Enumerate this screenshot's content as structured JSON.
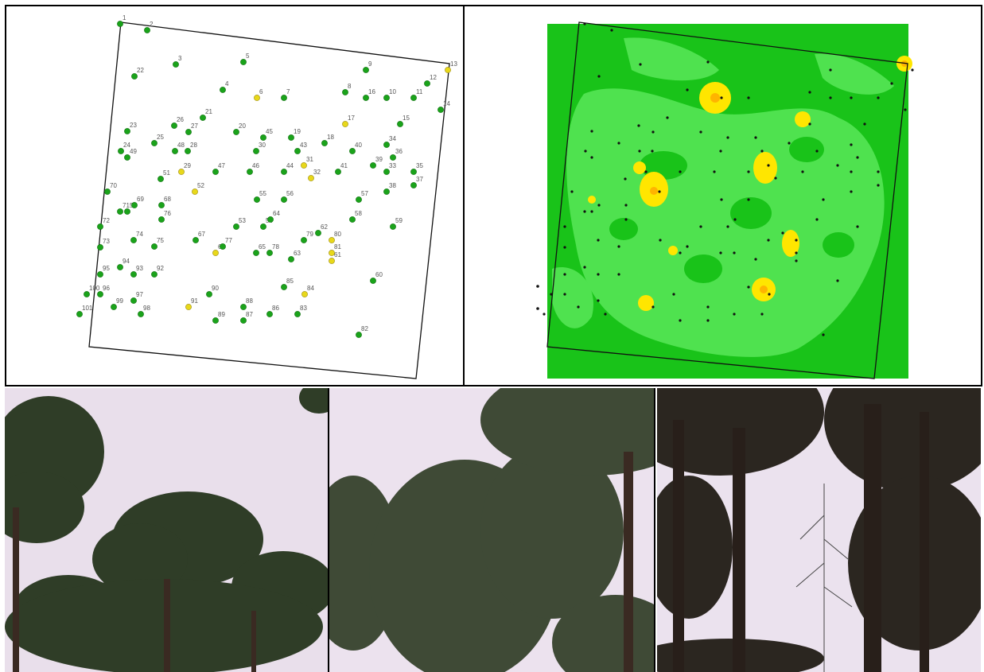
{
  "colors": {
    "point_green": "#1aa31a",
    "point_yellow": "#e8d81a",
    "map_dark_green": "#19c319",
    "map_light_green": "#4fe24f",
    "map_yellow": "#ffe600",
    "map_orange": "#ffb400",
    "sky": "#e8dfea",
    "foliage_dark": "#2d3a22",
    "trunk": "#3a2a22"
  },
  "point_map": {
    "points": [
      {
        "n": "1",
        "c": "g"
      },
      {
        "n": "2",
        "c": "g"
      },
      {
        "n": "3",
        "c": "g"
      },
      {
        "n": "4",
        "c": "g"
      },
      {
        "n": "5",
        "c": "g"
      },
      {
        "n": "6",
        "c": "y"
      },
      {
        "n": "7",
        "c": "g"
      },
      {
        "n": "8",
        "c": "g"
      },
      {
        "n": "9",
        "c": "g"
      },
      {
        "n": "10",
        "c": "g"
      },
      {
        "n": "11",
        "c": "g"
      },
      {
        "n": "12",
        "c": "g"
      },
      {
        "n": "13",
        "c": "y"
      },
      {
        "n": "14",
        "c": "g"
      },
      {
        "n": "15",
        "c": "g"
      },
      {
        "n": "16",
        "c": "g"
      },
      {
        "n": "17",
        "c": "y"
      },
      {
        "n": "18",
        "c": "g"
      },
      {
        "n": "19",
        "c": "g"
      },
      {
        "n": "20",
        "c": "g"
      },
      {
        "n": "21",
        "c": "g"
      },
      {
        "n": "22",
        "c": "g"
      },
      {
        "n": "23",
        "c": "g"
      },
      {
        "n": "24",
        "c": "g"
      },
      {
        "n": "25",
        "c": "g"
      },
      {
        "n": "26",
        "c": "g"
      },
      {
        "n": "27",
        "c": "g"
      },
      {
        "n": "28",
        "c": "g"
      },
      {
        "n": "29",
        "c": "y"
      },
      {
        "n": "30",
        "c": "g"
      },
      {
        "n": "31",
        "c": "y"
      },
      {
        "n": "32",
        "c": "y"
      },
      {
        "n": "33",
        "c": "g"
      },
      {
        "n": "34",
        "c": "g"
      },
      {
        "n": "35",
        "c": "g"
      },
      {
        "n": "36",
        "c": "g"
      },
      {
        "n": "37",
        "c": "g"
      },
      {
        "n": "38",
        "c": "g"
      },
      {
        "n": "39",
        "c": "g"
      },
      {
        "n": "40",
        "c": "g"
      },
      {
        "n": "41",
        "c": "g"
      },
      {
        "n": "43",
        "c": "g"
      },
      {
        "n": "44",
        "c": "g"
      },
      {
        "n": "45",
        "c": "g"
      },
      {
        "n": "46",
        "c": "g"
      },
      {
        "n": "47",
        "c": "g"
      },
      {
        "n": "48",
        "c": "g"
      },
      {
        "n": "49",
        "c": "g"
      },
      {
        "n": "50",
        "c": "g"
      },
      {
        "n": "51",
        "c": "g"
      },
      {
        "n": "52",
        "c": "y"
      },
      {
        "n": "53",
        "c": "g"
      },
      {
        "n": "54",
        "c": "g"
      },
      {
        "n": "55",
        "c": "g"
      },
      {
        "n": "56",
        "c": "g"
      },
      {
        "n": "57",
        "c": "g"
      },
      {
        "n": "58",
        "c": "g"
      },
      {
        "n": "59",
        "c": "g"
      },
      {
        "n": "60",
        "c": "g"
      },
      {
        "n": "61",
        "c": "y"
      },
      {
        "n": "62",
        "c": "g"
      },
      {
        "n": "63",
        "c": "g"
      },
      {
        "n": "64",
        "c": "g"
      },
      {
        "n": "65",
        "c": "g"
      },
      {
        "n": "66",
        "c": "y"
      },
      {
        "n": "67",
        "c": "g"
      },
      {
        "n": "68",
        "c": "g"
      },
      {
        "n": "69",
        "c": "g"
      },
      {
        "n": "70",
        "c": "g"
      },
      {
        "n": "71",
        "c": "g"
      },
      {
        "n": "72",
        "c": "g"
      },
      {
        "n": "73",
        "c": "g"
      },
      {
        "n": "74",
        "c": "g"
      },
      {
        "n": "75",
        "c": "g"
      },
      {
        "n": "76",
        "c": "g"
      },
      {
        "n": "77",
        "c": "g"
      },
      {
        "n": "78",
        "c": "g"
      },
      {
        "n": "79",
        "c": "g"
      },
      {
        "n": "80",
        "c": "y"
      },
      {
        "n": "81",
        "c": "y"
      },
      {
        "n": "82",
        "c": "g"
      },
      {
        "n": "83",
        "c": "g"
      },
      {
        "n": "84",
        "c": "y"
      },
      {
        "n": "85",
        "c": "g"
      },
      {
        "n": "86",
        "c": "g"
      },
      {
        "n": "87",
        "c": "g"
      },
      {
        "n": "88",
        "c": "g"
      },
      {
        "n": "89",
        "c": "g"
      },
      {
        "n": "90",
        "c": "g"
      },
      {
        "n": "91",
        "c": "y"
      },
      {
        "n": "92",
        "c": "g"
      },
      {
        "n": "93",
        "c": "g"
      },
      {
        "n": "94",
        "c": "g"
      },
      {
        "n": "95",
        "c": "g"
      },
      {
        "n": "96",
        "c": "g"
      },
      {
        "n": "97",
        "c": "g"
      },
      {
        "n": "98",
        "c": "g"
      },
      {
        "n": "99",
        "c": "g"
      },
      {
        "n": "100",
        "c": "g"
      },
      {
        "n": "101",
        "c": "g"
      }
    ]
  }
}
